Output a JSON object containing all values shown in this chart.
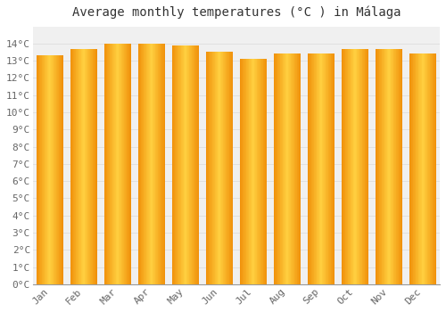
{
  "title": "Average monthly temperatures (°C ) in Málaga",
  "months": [
    "Jan",
    "Feb",
    "Mar",
    "Apr",
    "May",
    "Jun",
    "Jul",
    "Aug",
    "Sep",
    "Oct",
    "Nov",
    "Dec"
  ],
  "values": [
    13.3,
    13.7,
    14.0,
    14.0,
    13.9,
    13.5,
    13.1,
    13.4,
    13.4,
    13.7,
    13.7,
    13.4
  ],
  "ylim": [
    0,
    15
  ],
  "ytick_values": [
    0,
    1,
    2,
    3,
    4,
    5,
    6,
    7,
    8,
    9,
    10,
    11,
    12,
    13,
    14
  ],
  "bar_color_center": "#FFD040",
  "bar_color_edge": "#F0900A",
  "background_color": "#FFFFFF",
  "plot_bg_color": "#F0F0F0",
  "grid_color": "#DDDDDD",
  "title_fontsize": 10,
  "tick_fontsize": 8,
  "font_family": "monospace"
}
